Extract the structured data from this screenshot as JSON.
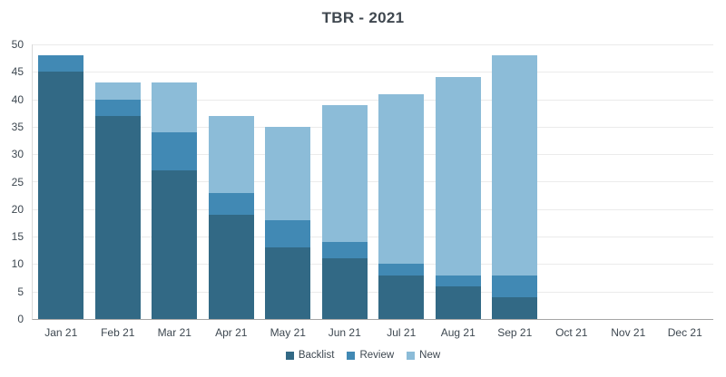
{
  "title": "TBR - 2021",
  "chart_data": {
    "type": "bar",
    "stacked": true,
    "title": "TBR - 2021",
    "xlabel": "",
    "ylabel": "",
    "categories": [
      "Jan 21",
      "Feb 21",
      "Mar 21",
      "Apr 21",
      "May 21",
      "Jun 21",
      "Jul 21",
      "Aug 21",
      "Sep 21",
      "Oct 21",
      "Nov 21",
      "Dec 21"
    ],
    "series": [
      {
        "name": "Backlist",
        "color": "#326985",
        "values": [
          45,
          37,
          27,
          19,
          13,
          11,
          8,
          6,
          4,
          0,
          0,
          0
        ]
      },
      {
        "name": "Review",
        "color": "#4189b4",
        "values": [
          3,
          3,
          7,
          4,
          5,
          3,
          2,
          2,
          4,
          0,
          0,
          0
        ]
      },
      {
        "name": "New",
        "color": "#8cbcd8",
        "values": [
          0,
          3,
          9,
          14,
          17,
          25,
          31,
          36,
          40,
          0,
          0,
          0
        ]
      }
    ],
    "stack_totals": [
      48,
      43,
      43,
      37,
      35,
      39,
      41,
      44,
      48,
      0,
      0,
      0
    ],
    "ylim": [
      0,
      50
    ],
    "yticks": [
      0,
      5,
      10,
      15,
      20,
      25,
      30,
      35,
      40,
      45,
      50
    ],
    "grid": true,
    "legend_position": "bottom"
  },
  "colors": {
    "background": "#ffffff",
    "gridline": "#ebebeb",
    "axis_line": "#a6a6a6",
    "plot_border": "#d9d9d9",
    "title_text": "#3f474f",
    "tick_text": "#3d4750"
  }
}
